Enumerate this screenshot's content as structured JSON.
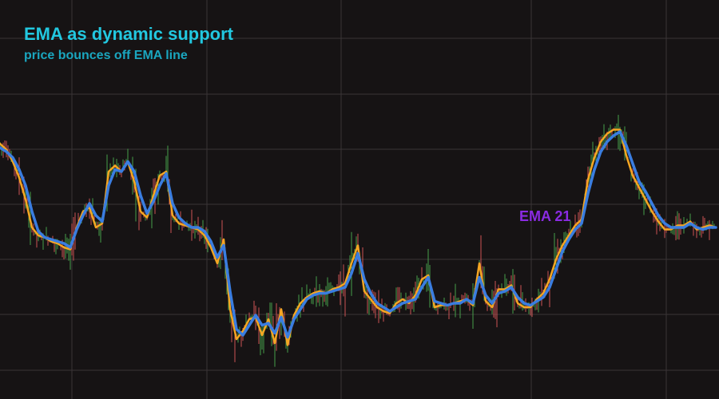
{
  "chart_data": {
    "type": "line",
    "title": "EMA as dynamic support",
    "subtitle": "price bounces off EMA line",
    "ema_label": "EMA 21",
    "grid": true,
    "legend": "none",
    "colors": {
      "background": "#161314",
      "grid": "#3a3536",
      "title": "#22c8e0",
      "subtitle": "#1aa6bf",
      "ema_label": "#8a2be2",
      "ema_line": "#3a7de0",
      "fast_line": "#f5a623",
      "candle_up": "#4caf50",
      "candle_down": "#e05a5a"
    },
    "x": [
      0,
      8,
      16,
      24,
      32,
      40,
      48,
      56,
      64,
      72,
      80,
      88,
      96,
      104,
      112,
      120,
      128,
      136,
      144,
      152,
      160,
      168,
      176,
      184,
      192,
      200,
      208,
      216,
      224,
      232,
      240,
      248,
      256,
      264,
      272,
      280,
      288,
      296,
      304,
      312,
      320,
      328,
      336,
      344,
      352,
      360,
      368,
      376,
      384,
      392,
      400,
      408,
      416,
      424,
      432,
      440,
      448,
      456,
      464,
      472,
      480,
      488,
      496,
      504,
      512,
      520,
      528,
      536,
      544,
      552,
      560,
      568,
      576,
      584,
      592,
      600,
      608,
      616,
      624,
      632,
      640,
      648,
      656,
      664,
      672,
      680,
      688,
      696,
      704,
      712,
      720,
      728,
      736,
      744,
      752,
      760,
      768,
      776,
      784,
      792,
      800,
      808,
      816,
      824,
      832,
      840,
      848,
      856,
      864,
      872,
      880,
      888,
      896
    ],
    "series": [
      {
        "name": "EMA 21",
        "role": "ema",
        "values": [
          0.6,
          0.4,
          0.1,
          -0.5,
          -1.3,
          -2.6,
          -3.6,
          -3.9,
          -4.0,
          -4.1,
          -4.2,
          -4.4,
          -3.5,
          -2.8,
          -2.2,
          -2.8,
          -3.1,
          -1.3,
          -0.5,
          -0.6,
          -0.1,
          -0.6,
          -1.8,
          -2.7,
          -2.1,
          -1.3,
          -0.7,
          -2.2,
          -2.9,
          -3.2,
          -3.4,
          -3.4,
          -3.6,
          -4.1,
          -4.9,
          -4.3,
          -6.6,
          -8.5,
          -8.8,
          -8.3,
          -7.8,
          -8.3,
          -8.2,
          -8.7,
          -7.9,
          -8.9,
          -8.0,
          -7.5,
          -7.0,
          -6.8,
          -6.7,
          -6.7,
          -6.6,
          -6.5,
          -6.4,
          -5.7,
          -4.7,
          -6.0,
          -6.7,
          -7.2,
          -7.4,
          -7.6,
          -7.4,
          -7.2,
          -7.1,
          -7.0,
          -6.4,
          -5.9,
          -7.1,
          -7.2,
          -7.3,
          -7.2,
          -7.2,
          -7.0,
          -7.2,
          -5.9,
          -6.8,
          -7.2,
          -6.7,
          -6.6,
          -6.4,
          -6.9,
          -7.2,
          -7.3,
          -7.1,
          -6.9,
          -6.4,
          -5.5,
          -4.6,
          -4.0,
          -3.5,
          -3.2,
          -1.7,
          -0.5,
          0.4,
          0.9,
          1.2,
          1.4,
          0.7,
          -0.2,
          -1.1,
          -1.6,
          -2.2,
          -2.8,
          -3.2,
          -3.4,
          -3.4,
          -3.4,
          -3.2,
          -3.4,
          -3.5,
          -3.4,
          -3.4
        ]
      },
      {
        "name": "",
        "role": "fast",
        "values": [
          0.8,
          0.5,
          -0.1,
          -0.9,
          -2.0,
          -3.4,
          -3.8,
          -3.9,
          -4.1,
          -4.2,
          -4.4,
          -4.5,
          -3.4,
          -2.6,
          -2.4,
          -3.4,
          -3.2,
          -0.6,
          -0.3,
          -0.6,
          -0.1,
          -1.1,
          -2.6,
          -2.9,
          -1.8,
          -0.8,
          -0.6,
          -2.8,
          -3.2,
          -3.3,
          -3.4,
          -3.5,
          -3.8,
          -4.4,
          -5.2,
          -4.0,
          -7.5,
          -9.0,
          -8.6,
          -8.0,
          -7.9,
          -8.8,
          -8.0,
          -9.2,
          -7.5,
          -9.3,
          -7.8,
          -7.2,
          -6.9,
          -6.7,
          -6.6,
          -6.7,
          -6.5,
          -6.4,
          -6.2,
          -5.2,
          -4.3,
          -6.6,
          -7.0,
          -7.4,
          -7.6,
          -7.7,
          -7.2,
          -7.0,
          -7.2,
          -6.8,
          -6.0,
          -5.8,
          -7.4,
          -7.3,
          -7.3,
          -7.2,
          -7.1,
          -7.0,
          -7.3,
          -5.2,
          -7.1,
          -7.4,
          -6.5,
          -6.5,
          -6.3,
          -7.2,
          -7.4,
          -7.4,
          -7.0,
          -6.7,
          -6.0,
          -5.0,
          -4.3,
          -3.8,
          -3.3,
          -3.0,
          -1.0,
          0.1,
          0.9,
          1.3,
          1.5,
          1.5,
          0.2,
          -0.8,
          -1.4,
          -2.0,
          -2.6,
          -3.1,
          -3.5,
          -3.5,
          -3.3,
          -3.3,
          -3.1,
          -3.5,
          -3.4,
          -3.3,
          -3.4
        ]
      }
    ]
  }
}
